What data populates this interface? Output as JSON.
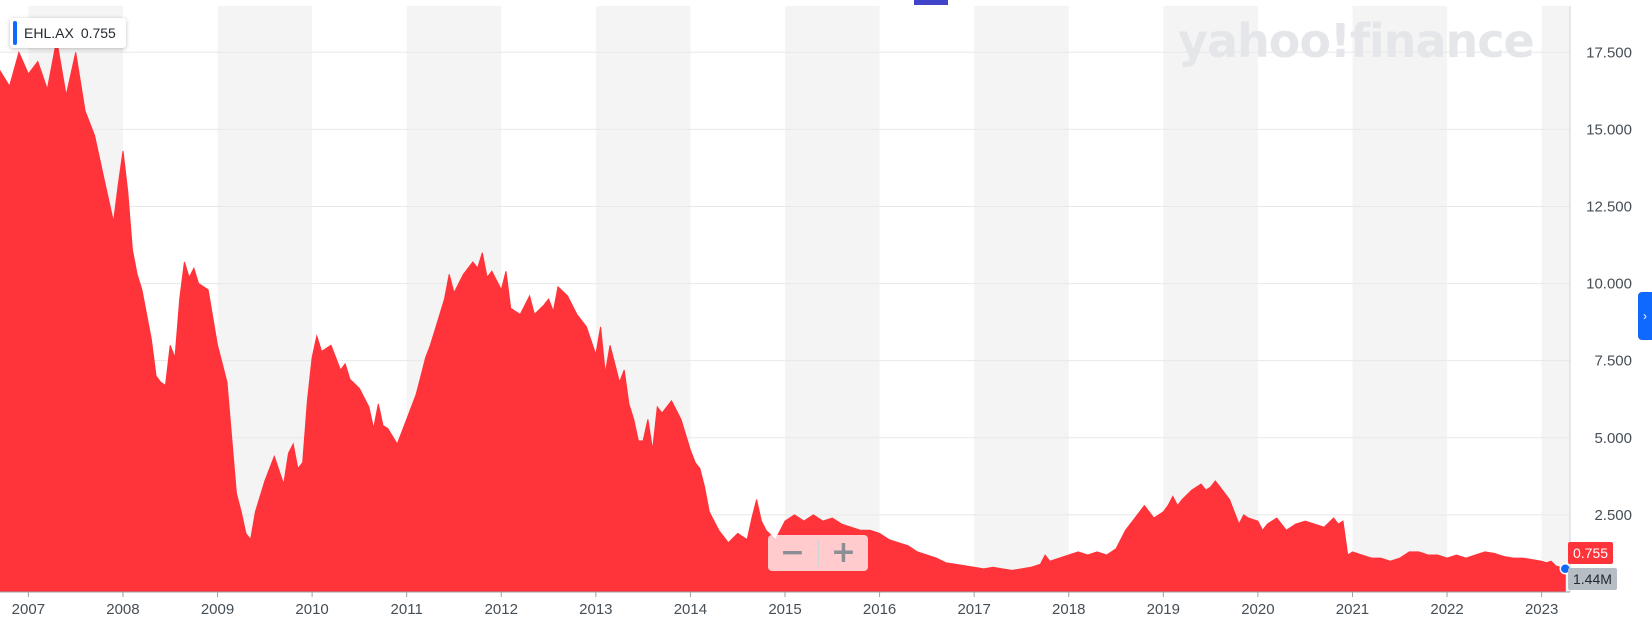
{
  "ticker": {
    "symbol": "EHL.AX",
    "value": "0.755"
  },
  "watermark": "yahoo!finance",
  "last_price_label": "0.755",
  "last_volume_label": "1.44M",
  "zoom": {
    "minus_symbol": "−",
    "plus_symbol": "+"
  },
  "colors": {
    "area": "#ff333a",
    "accent": "#0f69ff",
    "band": "#f4f4f4",
    "volume": "#f5c9cb"
  },
  "chart_data": {
    "type": "area",
    "title": "",
    "xlabel": "",
    "ylabel": "",
    "x_ticks": [
      "2007",
      "2008",
      "2009",
      "2010",
      "2011",
      "2012",
      "2013",
      "2014",
      "2015",
      "2016",
      "2017",
      "2018",
      "2019",
      "2020",
      "2021",
      "2022",
      "2023"
    ],
    "y_ticks": [
      "2.500",
      "5.000",
      "7.500",
      "10.000",
      "12.500",
      "15.000",
      "17.500"
    ],
    "ylim": [
      0,
      19
    ],
    "xlim": [
      2006.7,
      2023.3
    ],
    "grid": true,
    "series": [
      {
        "points": [
          [
            2006.7,
            16.9
          ],
          [
            2006.8,
            16.4
          ],
          [
            2006.9,
            17.5
          ],
          [
            2007.0,
            16.8
          ],
          [
            2007.1,
            17.2
          ],
          [
            2007.2,
            16.3
          ],
          [
            2007.3,
            17.9
          ],
          [
            2007.4,
            16.1
          ],
          [
            2007.5,
            17.5
          ],
          [
            2007.6,
            15.6
          ],
          [
            2007.7,
            14.8
          ],
          [
            2007.8,
            13.4
          ],
          [
            2007.9,
            12.0
          ],
          [
            2007.95,
            13.2
          ],
          [
            2008.0,
            14.3
          ],
          [
            2008.05,
            13.0
          ],
          [
            2008.1,
            11.1
          ],
          [
            2008.15,
            10.3
          ],
          [
            2008.2,
            9.8
          ],
          [
            2008.3,
            8.2
          ],
          [
            2008.35,
            7.0
          ],
          [
            2008.4,
            6.8
          ],
          [
            2008.45,
            6.7
          ],
          [
            2008.5,
            8.0
          ],
          [
            2008.55,
            7.6
          ],
          [
            2008.6,
            9.5
          ],
          [
            2008.65,
            10.7
          ],
          [
            2008.7,
            10.2
          ],
          [
            2008.75,
            10.5
          ],
          [
            2008.8,
            10.0
          ],
          [
            2008.9,
            9.8
          ],
          [
            2009.0,
            8.0
          ],
          [
            2009.05,
            7.4
          ],
          [
            2009.1,
            6.8
          ],
          [
            2009.15,
            5.0
          ],
          [
            2009.2,
            3.2
          ],
          [
            2009.25,
            2.6
          ],
          [
            2009.3,
            1.9
          ],
          [
            2009.35,
            1.7
          ],
          [
            2009.4,
            2.6
          ],
          [
            2009.5,
            3.6
          ],
          [
            2009.6,
            4.4
          ],
          [
            2009.7,
            3.5
          ],
          [
            2009.75,
            4.5
          ],
          [
            2009.8,
            4.8
          ],
          [
            2009.85,
            4.0
          ],
          [
            2009.9,
            4.2
          ],
          [
            2009.95,
            6.2
          ],
          [
            2010.0,
            7.6
          ],
          [
            2010.05,
            8.3
          ],
          [
            2010.1,
            7.8
          ],
          [
            2010.2,
            8.0
          ],
          [
            2010.3,
            7.2
          ],
          [
            2010.35,
            7.4
          ],
          [
            2010.4,
            6.9
          ],
          [
            2010.5,
            6.6
          ],
          [
            2010.6,
            6.0
          ],
          [
            2010.65,
            5.3
          ],
          [
            2010.7,
            6.1
          ],
          [
            2010.75,
            5.4
          ],
          [
            2010.8,
            5.3
          ],
          [
            2010.9,
            4.8
          ],
          [
            2011.0,
            5.6
          ],
          [
            2011.05,
            6.0
          ],
          [
            2011.1,
            6.4
          ],
          [
            2011.15,
            7.0
          ],
          [
            2011.2,
            7.6
          ],
          [
            2011.25,
            8.0
          ],
          [
            2011.3,
            8.5
          ],
          [
            2011.4,
            9.5
          ],
          [
            2011.45,
            10.3
          ],
          [
            2011.5,
            9.7
          ],
          [
            2011.6,
            10.3
          ],
          [
            2011.7,
            10.7
          ],
          [
            2011.75,
            10.5
          ],
          [
            2011.8,
            11.0
          ],
          [
            2011.85,
            10.2
          ],
          [
            2011.9,
            10.4
          ],
          [
            2012.0,
            9.8
          ],
          [
            2012.05,
            10.4
          ],
          [
            2012.1,
            9.2
          ],
          [
            2012.2,
            9.0
          ],
          [
            2012.3,
            9.6
          ],
          [
            2012.35,
            9.0
          ],
          [
            2012.45,
            9.3
          ],
          [
            2012.5,
            9.5
          ],
          [
            2012.55,
            9.1
          ],
          [
            2012.6,
            9.9
          ],
          [
            2012.7,
            9.6
          ],
          [
            2012.8,
            9.0
          ],
          [
            2012.9,
            8.6
          ],
          [
            2013.0,
            7.7
          ],
          [
            2013.05,
            8.6
          ],
          [
            2013.1,
            7.1
          ],
          [
            2013.15,
            8.0
          ],
          [
            2013.2,
            7.4
          ],
          [
            2013.25,
            6.8
          ],
          [
            2013.3,
            7.2
          ],
          [
            2013.35,
            6.1
          ],
          [
            2013.4,
            5.6
          ],
          [
            2013.45,
            4.9
          ],
          [
            2013.5,
            4.9
          ],
          [
            2013.55,
            5.6
          ],
          [
            2013.6,
            4.6
          ],
          [
            2013.65,
            6.0
          ],
          [
            2013.7,
            5.8
          ],
          [
            2013.8,
            6.2
          ],
          [
            2013.9,
            5.6
          ],
          [
            2014.0,
            4.6
          ],
          [
            2014.05,
            4.2
          ],
          [
            2014.1,
            4.0
          ],
          [
            2014.15,
            3.4
          ],
          [
            2014.2,
            2.6
          ],
          [
            2014.3,
            2.0
          ],
          [
            2014.4,
            1.6
          ],
          [
            2014.5,
            1.9
          ],
          [
            2014.55,
            1.8
          ],
          [
            2014.6,
            1.7
          ],
          [
            2014.65,
            2.4
          ],
          [
            2014.7,
            3.0
          ],
          [
            2014.75,
            2.3
          ],
          [
            2014.8,
            2.0
          ],
          [
            2014.9,
            1.7
          ],
          [
            2015.0,
            2.3
          ],
          [
            2015.1,
            2.5
          ],
          [
            2015.2,
            2.3
          ],
          [
            2015.3,
            2.5
          ],
          [
            2015.4,
            2.3
          ],
          [
            2015.5,
            2.4
          ],
          [
            2015.6,
            2.2
          ],
          [
            2015.7,
            2.1
          ],
          [
            2015.8,
            2.0
          ],
          [
            2015.9,
            2.0
          ],
          [
            2016.0,
            1.9
          ],
          [
            2016.1,
            1.7
          ],
          [
            2016.2,
            1.6
          ],
          [
            2016.3,
            1.5
          ],
          [
            2016.4,
            1.3
          ],
          [
            2016.5,
            1.2
          ],
          [
            2016.6,
            1.1
          ],
          [
            2016.7,
            0.95
          ],
          [
            2016.8,
            0.9
          ],
          [
            2016.9,
            0.85
          ],
          [
            2017.0,
            0.8
          ],
          [
            2017.1,
            0.75
          ],
          [
            2017.2,
            0.8
          ],
          [
            2017.3,
            0.75
          ],
          [
            2017.4,
            0.7
          ],
          [
            2017.5,
            0.75
          ],
          [
            2017.6,
            0.8
          ],
          [
            2017.7,
            0.9
          ],
          [
            2017.75,
            1.2
          ],
          [
            2017.8,
            1.0
          ],
          [
            2017.9,
            1.1
          ],
          [
            2018.0,
            1.2
          ],
          [
            2018.1,
            1.3
          ],
          [
            2018.2,
            1.2
          ],
          [
            2018.3,
            1.3
          ],
          [
            2018.4,
            1.2
          ],
          [
            2018.5,
            1.4
          ],
          [
            2018.6,
            2.0
          ],
          [
            2018.7,
            2.4
          ],
          [
            2018.8,
            2.8
          ],
          [
            2018.9,
            2.4
          ],
          [
            2019.0,
            2.6
          ],
          [
            2019.05,
            2.8
          ],
          [
            2019.1,
            3.1
          ],
          [
            2019.15,
            2.8
          ],
          [
            2019.2,
            3.0
          ],
          [
            2019.3,
            3.3
          ],
          [
            2019.4,
            3.5
          ],
          [
            2019.45,
            3.3
          ],
          [
            2019.5,
            3.4
          ],
          [
            2019.55,
            3.6
          ],
          [
            2019.6,
            3.4
          ],
          [
            2019.7,
            3.0
          ],
          [
            2019.75,
            2.6
          ],
          [
            2019.8,
            2.2
          ],
          [
            2019.85,
            2.5
          ],
          [
            2019.9,
            2.4
          ],
          [
            2020.0,
            2.3
          ],
          [
            2020.05,
            2.0
          ],
          [
            2020.1,
            2.2
          ],
          [
            2020.2,
            2.4
          ],
          [
            2020.3,
            2.0
          ],
          [
            2020.4,
            2.2
          ],
          [
            2020.5,
            2.3
          ],
          [
            2020.6,
            2.2
          ],
          [
            2020.7,
            2.1
          ],
          [
            2020.8,
            2.4
          ],
          [
            2020.85,
            2.2
          ],
          [
            2020.9,
            2.3
          ],
          [
            2020.95,
            1.2
          ],
          [
            2021.0,
            1.3
          ],
          [
            2021.1,
            1.2
          ],
          [
            2021.2,
            1.1
          ],
          [
            2021.3,
            1.1
          ],
          [
            2021.4,
            1.0
          ],
          [
            2021.5,
            1.1
          ],
          [
            2021.55,
            1.2
          ],
          [
            2021.6,
            1.3
          ],
          [
            2021.7,
            1.3
          ],
          [
            2021.8,
            1.2
          ],
          [
            2021.9,
            1.2
          ],
          [
            2022.0,
            1.1
          ],
          [
            2022.1,
            1.2
          ],
          [
            2022.2,
            1.1
          ],
          [
            2022.3,
            1.2
          ],
          [
            2022.4,
            1.3
          ],
          [
            2022.5,
            1.25
          ],
          [
            2022.6,
            1.15
          ],
          [
            2022.7,
            1.1
          ],
          [
            2022.8,
            1.1
          ],
          [
            2022.9,
            1.05
          ],
          [
            2023.0,
            1.0
          ],
          [
            2023.05,
            0.95
          ],
          [
            2023.1,
            1.0
          ],
          [
            2023.15,
            0.85
          ],
          [
            2023.2,
            0.8
          ],
          [
            2023.25,
            0.755
          ]
        ]
      }
    ]
  }
}
